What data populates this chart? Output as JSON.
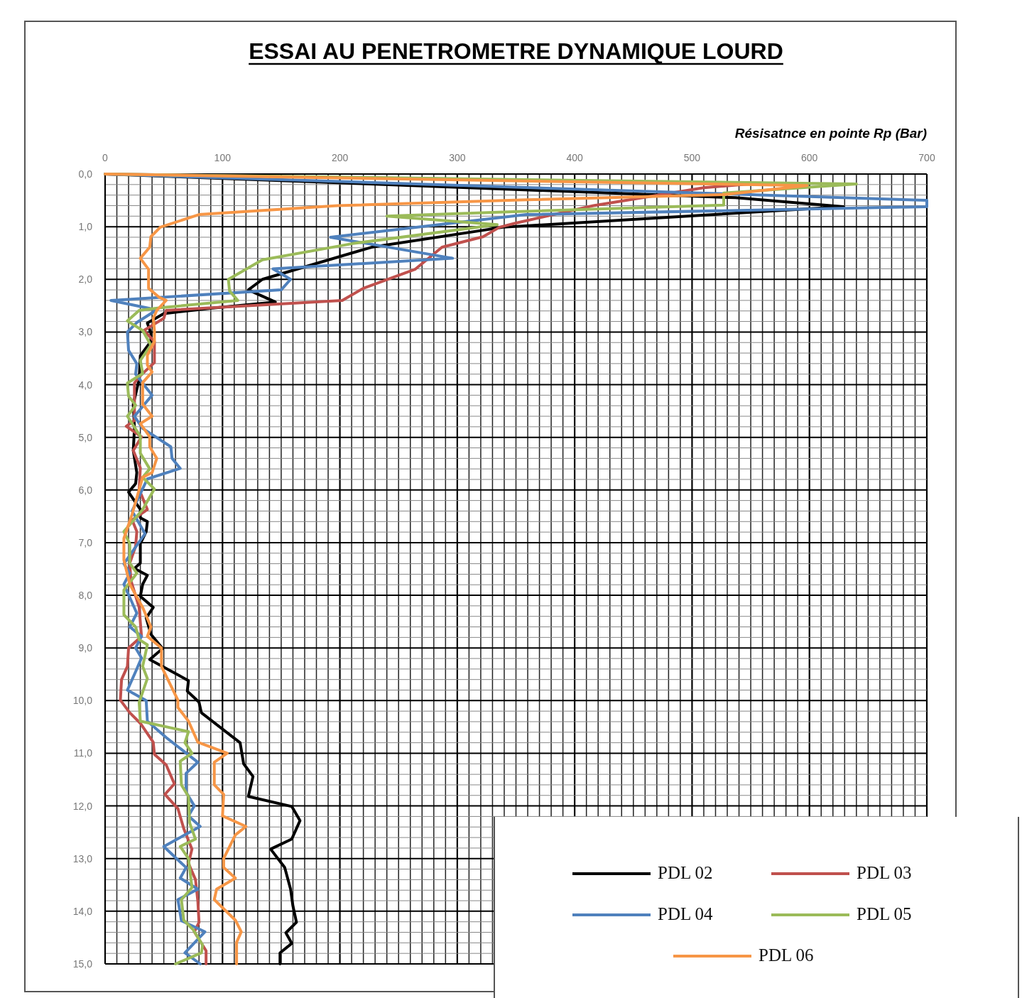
{
  "chart_data": {
    "type": "line",
    "title": "ESSAI AU PENETROMETRE DYNAMIQUE LOURD",
    "xlabel": "Résisatnce en pointe Rp (Bar)",
    "xlim": [
      0,
      700
    ],
    "xticks": [
      0,
      100,
      200,
      300,
      400,
      500,
      600,
      700
    ],
    "ylim": [
      15,
      0
    ],
    "yticks": [
      {
        "value": 0,
        "label": "0,0"
      },
      {
        "value": 1,
        "label": "1,0"
      },
      {
        "value": 2,
        "label": "2,0"
      },
      {
        "value": 3,
        "label": "3,0"
      },
      {
        "value": 4,
        "label": "4,0"
      },
      {
        "value": 5,
        "label": "5,0"
      },
      {
        "value": 6,
        "label": "6,0"
      },
      {
        "value": 7,
        "label": "7,0"
      },
      {
        "value": 8,
        "label": "8,0"
      },
      {
        "value": 9,
        "label": "9,0"
      },
      {
        "value": 10,
        "label": "10,0"
      },
      {
        "value": 11,
        "label": "11,0"
      },
      {
        "value": 12,
        "label": "12,0"
      },
      {
        "value": 13,
        "label": "13,0"
      },
      {
        "value": 14,
        "label": "14,0"
      },
      {
        "value": 15,
        "label": "15,0"
      }
    ],
    "grid": true,
    "legend": "bottom right",
    "series": [
      {
        "name": "PDL 02",
        "color": "#000000",
        "x": [
          0,
          537,
          629,
          339,
          227,
          134,
          122,
          145,
          90,
          50,
          36,
          39,
          39,
          30,
          29,
          24,
          25,
          24,
          27,
          26,
          20,
          30,
          30,
          36,
          35,
          30,
          30,
          25,
          36,
          32,
          30,
          41,
          35,
          39,
          49,
          38,
          71,
          70,
          80,
          82,
          115,
          118,
          126,
          122,
          159,
          166,
          159,
          141,
          153,
          158,
          160,
          163,
          154,
          159,
          149,
          149
        ],
        "values": [
          0,
          0.45,
          0.62,
          1.01,
          1.39,
          2.0,
          2.2,
          2.43,
          2.55,
          2.65,
          2.83,
          3.02,
          3.18,
          3.45,
          3.9,
          4.37,
          4.83,
          5.25,
          5.67,
          5.88,
          6.04,
          6.37,
          6.53,
          6.6,
          6.79,
          7.02,
          7.39,
          7.49,
          7.62,
          7.79,
          8.02,
          8.23,
          8.43,
          8.74,
          9.01,
          9.22,
          9.62,
          9.82,
          10.03,
          10.23,
          10.8,
          11.2,
          11.44,
          11.82,
          12.01,
          12.28,
          12.63,
          12.82,
          13.17,
          13.58,
          13.9,
          14.21,
          14.41,
          14.61,
          14.79,
          15.0
        ]
      },
      {
        "name": "PDL 03",
        "color": "#c0504d",
        "x": [
          0,
          555,
          510,
          416,
          350,
          336,
          322,
          287,
          264,
          220,
          202,
          52,
          50,
          33,
          42,
          42,
          30,
          25,
          25,
          18,
          31,
          24,
          30,
          29,
          36,
          23,
          27,
          26,
          21,
          22,
          29,
          31,
          20,
          19,
          14,
          13,
          21,
          30,
          41,
          42,
          52,
          59,
          51,
          62,
          67,
          74,
          71,
          77,
          79,
          80,
          76,
          86,
          86
        ],
        "values": [
          0,
          0.18,
          0.26,
          0.6,
          0.93,
          1.01,
          1.19,
          1.39,
          1.81,
          2.17,
          2.4,
          2.59,
          2.74,
          2.97,
          3.18,
          3.58,
          3.83,
          3.97,
          4.68,
          4.79,
          4.99,
          5.25,
          5.58,
          5.99,
          6.37,
          6.57,
          6.79,
          7.07,
          7.39,
          7.72,
          8.23,
          8.78,
          9.0,
          9.35,
          9.6,
          9.99,
          10.23,
          10.43,
          10.79,
          11.02,
          11.22,
          11.58,
          11.78,
          12.05,
          12.43,
          12.82,
          13.09,
          13.4,
          13.81,
          14.21,
          14.39,
          14.75,
          15.0
        ]
      },
      {
        "name": "PDL 04",
        "color": "#4f81bd",
        "x": [
          0,
          700,
          700,
          359,
          192,
          296,
          143,
          158,
          150,
          5,
          44,
          27,
          19,
          20,
          27,
          26,
          40,
          25,
          32,
          56,
          57,
          64,
          36,
          23,
          34,
          16,
          21,
          16,
          27,
          21,
          31,
          26,
          31,
          26,
          19,
          35,
          36,
          52,
          79,
          69,
          69,
          76,
          71,
          81,
          50,
          69,
          64,
          79,
          62,
          65,
          85,
          68,
          81
        ],
        "values": [
          0,
          0.5,
          0.62,
          0.77,
          1.2,
          1.6,
          1.8,
          2.0,
          2.2,
          2.4,
          2.58,
          2.82,
          3.0,
          3.35,
          3.6,
          3.8,
          4.2,
          4.6,
          4.83,
          5.18,
          5.4,
          5.59,
          5.79,
          6.4,
          6.83,
          7.4,
          7.58,
          7.79,
          8.34,
          8.6,
          8.78,
          9.0,
          9.19,
          9.45,
          9.8,
          10.0,
          10.39,
          10.7,
          11.17,
          11.38,
          11.74,
          12.0,
          12.19,
          12.39,
          12.77,
          13.17,
          13.37,
          13.58,
          13.78,
          14.18,
          14.39,
          14.79,
          15.0
        ]
      },
      {
        "name": "PDL 05",
        "color": "#9bbb59",
        "x": [
          0,
          640,
          527,
          527,
          339,
          240,
          334,
          211,
          134,
          105,
          106,
          113,
          47,
          29,
          19,
          32,
          39,
          30,
          32,
          19,
          20,
          26,
          19,
          30,
          30,
          38,
          32,
          42,
          32,
          16,
          21,
          21,
          27,
          16,
          16,
          26,
          29,
          36,
          32,
          36,
          29,
          30,
          71,
          68,
          74,
          64,
          65,
          71,
          72,
          77,
          64,
          71,
          74,
          65,
          67,
          75,
          83,
          82,
          60
        ],
        "values": [
          0,
          0.19,
          0.36,
          0.59,
          0.72,
          0.8,
          0.96,
          1.32,
          1.63,
          2.0,
          2.22,
          2.4,
          2.54,
          2.59,
          2.79,
          2.97,
          3.25,
          3.54,
          3.79,
          3.97,
          4.22,
          4.39,
          4.6,
          4.98,
          5.3,
          5.6,
          5.76,
          5.98,
          6.37,
          6.79,
          7.02,
          7.39,
          7.58,
          7.9,
          8.37,
          8.6,
          8.84,
          8.94,
          9.35,
          9.58,
          10.03,
          10.39,
          10.59,
          10.8,
          11.0,
          11.15,
          11.6,
          11.82,
          12.32,
          12.63,
          12.77,
          13.0,
          13.55,
          13.78,
          14.17,
          14.35,
          14.64,
          14.79,
          15.0
        ]
      },
      {
        "name": "PDL 06",
        "color": "#f79646",
        "x": [
          0,
          598,
          527,
          359,
          198,
          80,
          47,
          39,
          38,
          30,
          37,
          37,
          46,
          52,
          44,
          41,
          42,
          42,
          36,
          36,
          40,
          32,
          32,
          40,
          30,
          38,
          38,
          44,
          40,
          32,
          23,
          16,
          16,
          21,
          32,
          39,
          36,
          48,
          48,
          62,
          62,
          71,
          79,
          104,
          93,
          93,
          101,
          100,
          120,
          111,
          101,
          101,
          111,
          95,
          93,
          111,
          116,
          112,
          112
        ],
        "values": [
          0,
          0.22,
          0.39,
          0.49,
          0.6,
          0.77,
          1.01,
          1.19,
          1.39,
          1.6,
          1.81,
          2.17,
          2.34,
          2.4,
          2.59,
          2.74,
          2.96,
          3.18,
          3.44,
          3.63,
          3.76,
          3.96,
          4.37,
          4.6,
          4.74,
          4.99,
          5.18,
          5.4,
          5.67,
          5.76,
          6.46,
          6.92,
          7.33,
          7.79,
          8.23,
          8.6,
          8.78,
          9.0,
          9.35,
          9.99,
          10.13,
          10.39,
          10.79,
          11.0,
          11.17,
          11.6,
          11.78,
          12.19,
          12.39,
          12.55,
          13.0,
          13.17,
          13.37,
          13.58,
          13.78,
          14.17,
          14.39,
          14.59,
          15.0
        ]
      }
    ]
  }
}
